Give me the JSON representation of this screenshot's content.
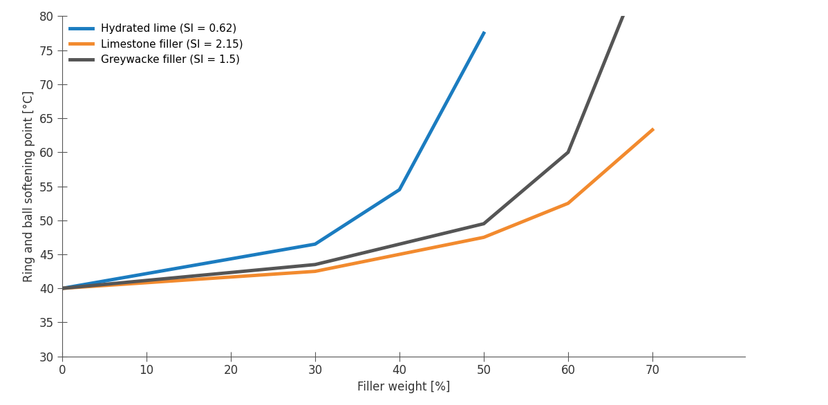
{
  "chart_data": {
    "type": "line",
    "x_label": "Filler weight [%]",
    "y_label": "Ring and ball softening point [°C]",
    "xlim": [
      0,
      81
    ],
    "xticks": [
      0,
      10,
      20,
      30,
      40,
      50,
      60,
      70
    ],
    "ylim": [
      30,
      80
    ],
    "yticks": [
      30,
      35,
      40,
      45,
      50,
      55,
      60,
      65,
      70,
      75,
      80
    ],
    "legend": "upper left",
    "grid": false,
    "series": [
      {
        "name": "Hydrated lime (SI = 0.62)",
        "color": "#1b7cc0",
        "x": [
          0,
          30,
          40,
          50
        ],
        "values": [
          40,
          46.5,
          54.5,
          77.5
        ]
      },
      {
        "name": "Limestone filler (SI = 2.15)",
        "color": "#f28a2e",
        "x": [
          0,
          30,
          50,
          60,
          70
        ],
        "values": [
          40,
          42.5,
          47.5,
          52.5,
          63.3
        ]
      },
      {
        "name": "Greywacke filler (SI = 1.5)",
        "color": "#555555",
        "x": [
          0,
          30,
          50,
          60,
          66.5
        ],
        "values": [
          40,
          43.5,
          49.5,
          60,
          80
        ]
      }
    ]
  }
}
